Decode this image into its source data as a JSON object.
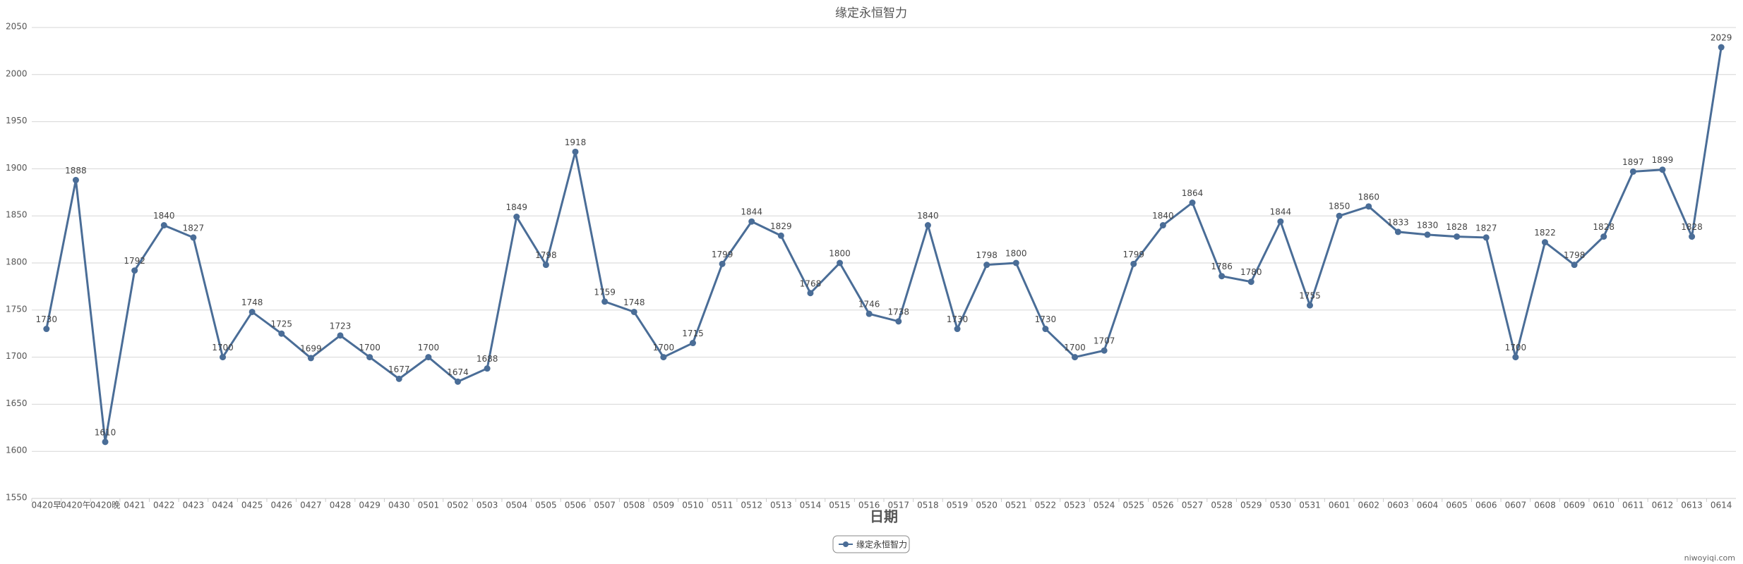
{
  "chart_data": {
    "type": "line",
    "title": "缘定永恒智力",
    "x_label": "日期",
    "categories": [
      "0420早",
      "0420午",
      "0420晚",
      "0421",
      "0422",
      "0423",
      "0424",
      "0425",
      "0426",
      "0427",
      "0428",
      "0429",
      "0430",
      "0501",
      "0502",
      "0503",
      "0504",
      "0505",
      "0506",
      "0507",
      "0508",
      "0509",
      "0510",
      "0511",
      "0512",
      "0513",
      "0514",
      "0515",
      "0516",
      "0517",
      "0518",
      "0519",
      "0520",
      "0521",
      "0522",
      "0523",
      "0524",
      "0525",
      "0526",
      "0527",
      "0528",
      "0529",
      "0530",
      "0531",
      "0601",
      "0602",
      "0603",
      "0604",
      "0605",
      "0606",
      "0607",
      "0608",
      "0609",
      "0610",
      "0611",
      "0612",
      "0613",
      "0614"
    ],
    "series": [
      {
        "name": "缘定永恒智力",
        "color": "#4a6d97",
        "values": [
          1730,
          1888,
          1610,
          1792,
          1840,
          1827,
          1700,
          1748,
          1725,
          1699,
          1723,
          1700,
          1677,
          1700,
          1674,
          1688,
          1849,
          1798,
          1918,
          1759,
          1748,
          1700,
          1715,
          1799,
          1844,
          1829,
          1768,
          1800,
          1746,
          1738,
          1840,
          1730,
          1798,
          1800,
          1730,
          1700,
          1707,
          1799,
          1840,
          1864,
          1786,
          1780,
          1844,
          1755,
          1850,
          1860,
          1833,
          1830,
          1828,
          1827,
          1700,
          1822,
          1798,
          1828,
          1897,
          1899,
          1828,
          2029
        ]
      }
    ],
    "ylim": [
      1550,
      2050
    ],
    "yticks": [
      1550,
      1600,
      1650,
      1700,
      1750,
      1800,
      1850,
      1900,
      1950,
      2000,
      2050
    ],
    "grid": true,
    "legend": "bottom",
    "watermark": "niwoyiqi.com"
  }
}
